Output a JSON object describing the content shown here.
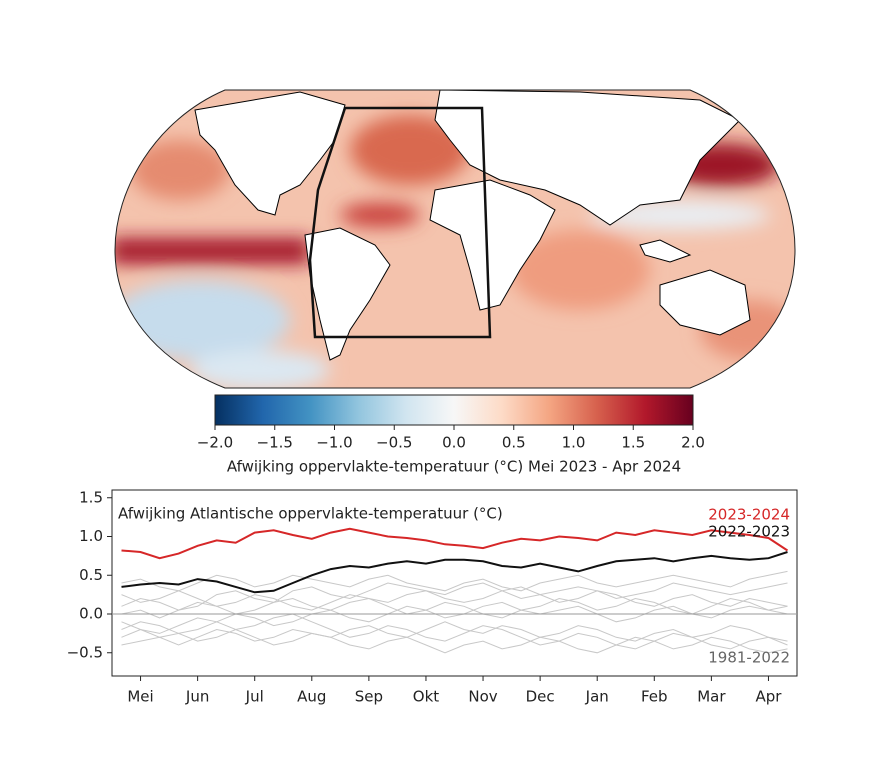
{
  "colorbar": {
    "lim": [
      -2,
      2
    ],
    "ticks": [
      {
        "value": -2,
        "label": "−2.0"
      },
      {
        "value": -1.5,
        "label": "−1.5"
      },
      {
        "value": -1,
        "label": "−1.0"
      },
      {
        "value": -0.5,
        "label": "−0.5"
      },
      {
        "value": 0,
        "label": "0.0"
      },
      0.5,
      {
        "value": 1,
        "label": "1.0"
      },
      1.5,
      {
        "value": 2,
        "label": "2.0"
      }
    ],
    "label": "Afwijking oppervlakte-temperatuur (°C) Mei 2023 - Apr 2024"
  },
  "chart_data": {
    "type": "line",
    "title": "Afwijking Atlantische oppervlakte-temperatuur (°C)",
    "categories": [
      null,
      "Mei",
      null,
      null,
      "Jun",
      null,
      null,
      "Jul",
      null,
      null,
      "Aug",
      null,
      null,
      "Sep",
      null,
      null,
      "Okt",
      null,
      null,
      "Nov",
      null,
      null,
      "Dec",
      null,
      null,
      "Jan",
      null,
      null,
      "Feb",
      null,
      null,
      "Mar",
      null,
      null,
      "Apr",
      null
    ],
    "ylim": [
      -0.8,
      1.6
    ],
    "yticks": [
      {
        "value": -0.5,
        "label": "−0.5"
      },
      {
        "value": 0,
        "label": "0.0"
      },
      0.5,
      {
        "value": 1,
        "label": "1.0"
      },
      1.5
    ],
    "series": [
      {
        "name": "2022-2023",
        "color": "#111111",
        "values": [
          0.35,
          0.38,
          0.4,
          0.38,
          0.45,
          0.42,
          0.35,
          0.28,
          0.3,
          0.4,
          0.5,
          0.58,
          0.62,
          0.6,
          0.65,
          0.68,
          0.65,
          0.7,
          0.7,
          0.68,
          0.62,
          0.6,
          0.65,
          0.6,
          0.55,
          0.62,
          0.68,
          0.7,
          0.72,
          0.68,
          0.72,
          0.75,
          0.72,
          0.7,
          0.72,
          0.8
        ]
      },
      {
        "name": "2023-2024",
        "color": "#d62728",
        "values": [
          0.82,
          0.8,
          0.72,
          0.78,
          0.88,
          0.95,
          0.92,
          1.05,
          1.08,
          1.02,
          0.97,
          1.05,
          1.1,
          1.05,
          1.0,
          0.98,
          0.95,
          0.9,
          0.88,
          0.85,
          0.92,
          0.97,
          0.95,
          1.0,
          0.98,
          0.95,
          1.05,
          1.02,
          1.08,
          1.05,
          1.02,
          1.08,
          1.05,
          1.02,
          0.98,
          0.82
        ]
      }
    ],
    "reference": {
      "name": "1981-2022",
      "color": "#c8c8c8",
      "lines": [
        [
          0.1,
          0.2,
          0.15,
          0.05,
          0.1,
          0.25,
          0.3,
          0.2,
          0.15,
          0.3,
          0.35,
          0.25,
          0.2,
          0.3,
          0.4,
          0.35,
          0.3,
          0.25,
          0.35,
          0.4,
          0.3,
          0.2,
          0.25,
          0.3,
          0.35,
          0.3,
          0.2,
          0.25,
          0.3,
          0.4,
          0.35,
          0.3,
          0.25,
          0.3,
          0.35,
          0.4
        ],
        [
          -0.2,
          -0.1,
          -0.15,
          -0.25,
          -0.2,
          -0.1,
          0.0,
          -0.05,
          -0.15,
          -0.1,
          0.0,
          0.05,
          -0.05,
          -0.1,
          0.0,
          0.1,
          0.05,
          -0.05,
          0.0,
          0.1,
          0.15,
          0.05,
          0.0,
          0.05,
          0.1,
          0.0,
          -0.1,
          -0.05,
          0.05,
          0.1,
          0.0,
          -0.05,
          0.05,
          0.1,
          0.05,
          0.0
        ],
        [
          -0.4,
          -0.35,
          -0.3,
          -0.4,
          -0.3,
          -0.2,
          -0.25,
          -0.35,
          -0.3,
          -0.2,
          -0.25,
          -0.3,
          -0.2,
          -0.15,
          -0.25,
          -0.3,
          -0.2,
          -0.1,
          -0.2,
          -0.25,
          -0.15,
          -0.2,
          -0.3,
          -0.25,
          -0.15,
          -0.2,
          -0.3,
          -0.35,
          -0.25,
          -0.2,
          -0.3,
          -0.25,
          -0.15,
          -0.2,
          -0.3,
          -0.35
        ],
        [
          0.4,
          0.45,
          0.35,
          0.3,
          0.4,
          0.5,
          0.45,
          0.35,
          0.4,
          0.5,
          0.45,
          0.4,
          0.35,
          0.45,
          0.5,
          0.4,
          0.35,
          0.3,
          0.4,
          0.45,
          0.35,
          0.3,
          0.4,
          0.45,
          0.5,
          0.4,
          0.35,
          0.4,
          0.45,
          0.5,
          0.45,
          0.4,
          0.35,
          0.45,
          0.5,
          0.55
        ],
        [
          0.0,
          0.05,
          -0.05,
          0.05,
          0.15,
          0.1,
          0.0,
          0.05,
          0.15,
          0.2,
          0.1,
          0.05,
          0.15,
          0.2,
          0.1,
          0.0,
          0.05,
          0.15,
          0.1,
          0.0,
          -0.05,
          0.05,
          0.1,
          0.2,
          0.15,
          0.05,
          0.1,
          0.2,
          0.15,
          0.05,
          0.0,
          0.1,
          0.2,
          0.15,
          0.05,
          0.1
        ],
        [
          -0.3,
          -0.2,
          -0.25,
          -0.15,
          -0.05,
          -0.1,
          -0.2,
          -0.15,
          -0.05,
          0.0,
          -0.1,
          -0.2,
          -0.3,
          -0.25,
          -0.15,
          -0.2,
          -0.3,
          -0.35,
          -0.25,
          -0.15,
          -0.2,
          -0.3,
          -0.4,
          -0.35,
          -0.25,
          -0.3,
          -0.4,
          -0.45,
          -0.35,
          -0.25,
          -0.3,
          -0.4,
          -0.45,
          -0.35,
          -0.3,
          -0.4
        ],
        [
          0.25,
          0.15,
          0.2,
          0.3,
          0.2,
          0.1,
          0.15,
          0.25,
          0.2,
          0.1,
          0.05,
          0.15,
          0.25,
          0.2,
          0.15,
          0.25,
          0.3,
          0.2,
          0.15,
          0.2,
          0.3,
          0.35,
          0.25,
          0.15,
          0.2,
          0.3,
          0.25,
          0.15,
          0.1,
          0.2,
          0.25,
          0.15,
          0.1,
          0.2,
          0.15,
          0.1
        ],
        [
          -0.1,
          -0.2,
          -0.3,
          -0.25,
          -0.35,
          -0.3,
          -0.2,
          -0.3,
          -0.4,
          -0.35,
          -0.25,
          -0.3,
          -0.4,
          -0.45,
          -0.35,
          -0.3,
          -0.4,
          -0.5,
          -0.4,
          -0.35,
          -0.45,
          -0.4,
          -0.3,
          -0.35,
          -0.45,
          -0.5,
          -0.4,
          -0.3,
          -0.35,
          -0.45,
          -0.4,
          -0.3,
          -0.35,
          -0.45,
          -0.5,
          -0.45
        ]
      ]
    }
  }
}
